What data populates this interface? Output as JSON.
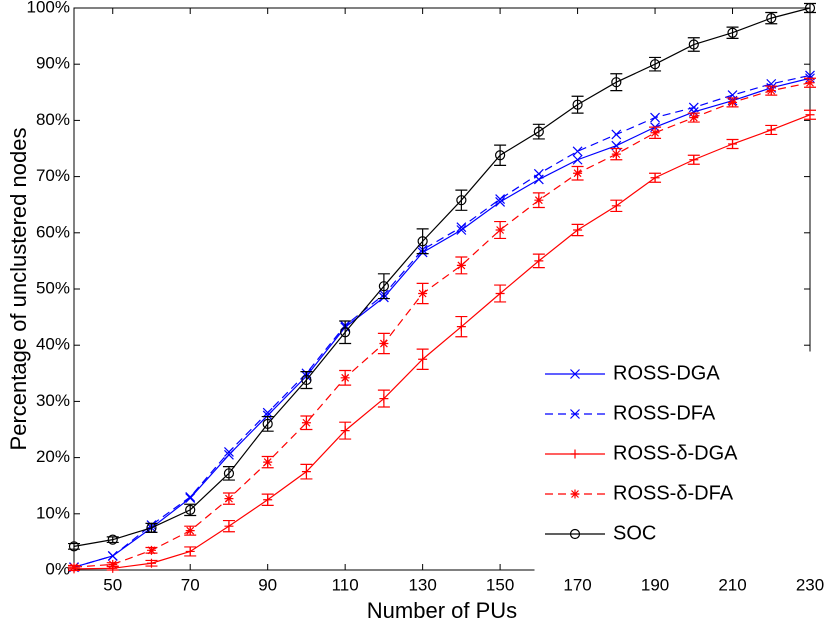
{
  "chart_data": {
    "type": "line",
    "xlabel": "Number of PUs",
    "ylabel": "Percentage of unclustered nodes",
    "x": [
      40,
      50,
      60,
      70,
      80,
      90,
      100,
      110,
      120,
      130,
      140,
      150,
      160,
      170,
      180,
      190,
      200,
      210,
      220,
      230
    ],
    "xlim": [
      40,
      230
    ],
    "xticks": [
      50,
      70,
      90,
      110,
      130,
      150,
      170,
      190,
      210,
      230
    ],
    "ylim": [
      0,
      100
    ],
    "yticks": [
      {
        "value": 0,
        "label": "0%"
      },
      {
        "value": 10,
        "label": "10%"
      },
      {
        "value": 20,
        "label": "20%"
      },
      {
        "value": 30,
        "label": "30%"
      },
      {
        "value": 40,
        "label": "40%"
      },
      {
        "value": 50,
        "label": "50%"
      },
      {
        "value": 60,
        "label": "60%"
      },
      {
        "value": 70,
        "label": "70%"
      },
      {
        "value": 80,
        "label": "80%"
      },
      {
        "value": 90,
        "label": "90%"
      },
      {
        "value": 100,
        "label": "100%"
      }
    ],
    "legend_position": "lower right",
    "series": [
      {
        "name": "ROSS-DGA",
        "color": "#0000ff",
        "marker": "x",
        "dashed": false,
        "values": [
          0.5,
          2.5,
          7.5,
          12.8,
          20.5,
          27.5,
          34.5,
          43.2,
          48.5,
          56.5,
          60.5,
          65.5,
          69.5,
          73,
          75.5,
          78.8,
          81.5,
          83.5,
          85.8,
          87.5
        ]
      },
      {
        "name": "ROSS-DFA",
        "color": "#0000ff",
        "marker": "x",
        "dashed": true,
        "values": [
          0.5,
          2.5,
          8,
          13,
          21,
          28,
          35,
          43.5,
          49,
          57,
          61,
          66,
          70.5,
          74.5,
          77.5,
          80.5,
          82.3,
          84.5,
          86.5,
          88
        ]
      },
      {
        "name": "ROSS-δ-DGA",
        "color": "#ff0000",
        "marker": "+",
        "dashed": false,
        "values": [
          0.2,
          0.3,
          1.2,
          3.3,
          7.8,
          12.5,
          17.5,
          24.8,
          30.5,
          37.5,
          43.3,
          49.2,
          55,
          60.5,
          64.8,
          69.8,
          73,
          75.8,
          78.3,
          81
        ],
        "errors": [
          0.3,
          0.3,
          0.5,
          0.8,
          1,
          1,
          1.3,
          1.5,
          1.5,
          1.8,
          1.8,
          1.5,
          1.2,
          1,
          1,
          0.8,
          0.8,
          0.8,
          0.8,
          0.8
        ]
      },
      {
        "name": "ROSS-δ-DFA",
        "color": "#ff0000",
        "marker": "*",
        "dashed": true,
        "values": [
          0.5,
          1,
          3.5,
          7,
          12.7,
          19.2,
          26.2,
          34.2,
          40.3,
          49.2,
          54.2,
          60.5,
          65.8,
          70.6,
          74,
          77.8,
          80.5,
          83.2,
          85.3,
          86.7
        ],
        "errors": [
          0.3,
          0.3,
          0.5,
          0.8,
          1,
          1,
          1.2,
          1.3,
          1.8,
          1.8,
          1.5,
          1.5,
          1.3,
          1.2,
          1,
          1,
          0.8,
          0.8,
          0.8,
          0.8
        ]
      },
      {
        "name": "SOC",
        "color": "#000000",
        "marker": "o",
        "dashed": false,
        "values": [
          4.2,
          5.4,
          7.5,
          10.7,
          17.2,
          26,
          33.8,
          42.3,
          50.5,
          58.5,
          65.8,
          73.8,
          78,
          82.8,
          86.8,
          90,
          93.5,
          95.6,
          98.2,
          100
        ],
        "errors": [
          0.5,
          0.5,
          0.8,
          1,
          1.2,
          1.3,
          1.5,
          2,
          2.2,
          2.2,
          1.8,
          1.8,
          1.3,
          1.5,
          1.5,
          1.2,
          1.2,
          1,
          1,
          0.8
        ]
      }
    ]
  }
}
